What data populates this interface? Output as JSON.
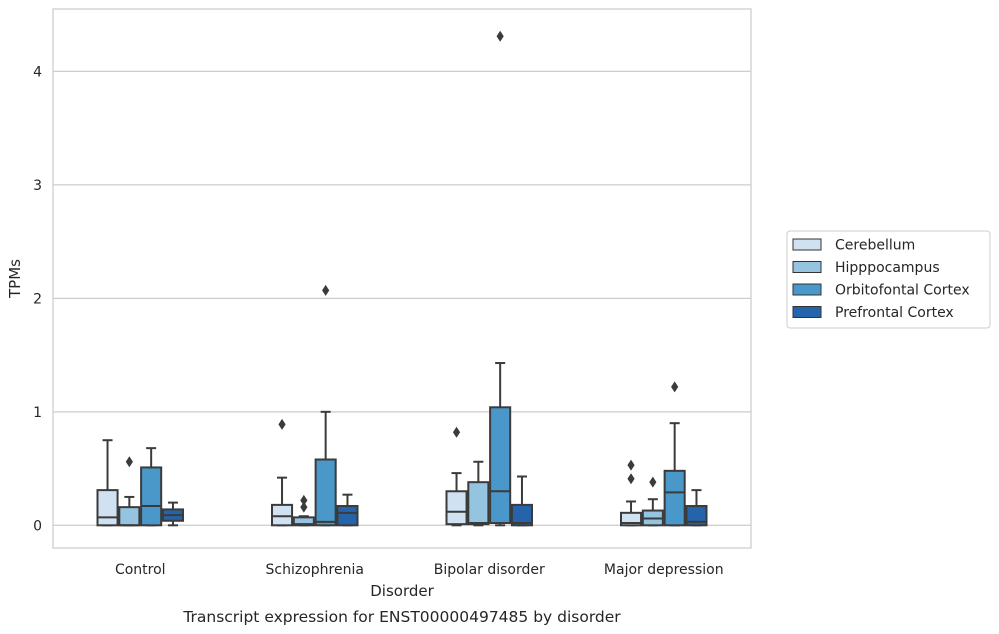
{
  "chart_data": {
    "type": "box",
    "title": "",
    "caption": "Transcript expression for ENST00000497485 by disorder",
    "xlabel": "Disorder",
    "ylabel": "TPMs",
    "ylim": [
      -0.2,
      4.55
    ],
    "yticks": [
      0,
      1,
      2,
      3,
      4
    ],
    "grid": "horizontal",
    "legend_position": "right",
    "categories": [
      "Control",
      "Schizophrenia",
      "Bipolar disorder",
      "Major depression"
    ],
    "series": [
      {
        "name": "Cerebellum",
        "color": "#d0e1f2",
        "boxes": [
          {
            "whislo": 0.0,
            "q1": 0.0,
            "med": 0.07,
            "q3": 0.31,
            "whishi": 0.75,
            "fliers": []
          },
          {
            "whislo": 0.0,
            "q1": 0.0,
            "med": 0.08,
            "q3": 0.18,
            "whishi": 0.42,
            "fliers": [
              0.89
            ]
          },
          {
            "whislo": 0.0,
            "q1": 0.01,
            "med": 0.12,
            "q3": 0.3,
            "whishi": 0.46,
            "fliers": [
              0.82
            ]
          },
          {
            "whislo": 0.0,
            "q1": 0.0,
            "med": 0.02,
            "q3": 0.11,
            "whishi": 0.21,
            "fliers": [
              0.41,
              0.53
            ]
          }
        ]
      },
      {
        "name": "Hipppocampus",
        "color": "#94c4df",
        "boxes": [
          {
            "whislo": 0.0,
            "q1": 0.0,
            "med": 0.0,
            "q3": 0.16,
            "whishi": 0.25,
            "fliers": [
              0.56
            ]
          },
          {
            "whislo": 0.0,
            "q1": 0.0,
            "med": 0.01,
            "q3": 0.07,
            "whishi": 0.08,
            "fliers": [
              0.16,
              0.22
            ]
          },
          {
            "whislo": 0.0,
            "q1": 0.01,
            "med": 0.02,
            "q3": 0.38,
            "whishi": 0.56,
            "fliers": []
          },
          {
            "whislo": 0.0,
            "q1": 0.0,
            "med": 0.06,
            "q3": 0.13,
            "whishi": 0.23,
            "fliers": [
              0.38
            ]
          }
        ]
      },
      {
        "name": "Orbitofontal Cortex",
        "color": "#4a98c9",
        "boxes": [
          {
            "whislo": 0.0,
            "q1": 0.0,
            "med": 0.17,
            "q3": 0.51,
            "whishi": 0.68,
            "fliers": []
          },
          {
            "whislo": 0.0,
            "q1": 0.0,
            "med": 0.03,
            "q3": 0.58,
            "whishi": 1.0,
            "fliers": [
              2.07
            ]
          },
          {
            "whislo": 0.0,
            "q1": 0.02,
            "med": 0.3,
            "q3": 1.04,
            "whishi": 1.43,
            "fliers": [
              4.31
            ]
          },
          {
            "whislo": 0.0,
            "q1": 0.0,
            "med": 0.29,
            "q3": 0.48,
            "whishi": 0.9,
            "fliers": [
              1.22
            ]
          }
        ]
      },
      {
        "name": "Prefrontal Cortex",
        "color": "#2563aa",
        "boxes": [
          {
            "whislo": 0.0,
            "q1": 0.04,
            "med": 0.09,
            "q3": 0.14,
            "whishi": 0.2,
            "fliers": []
          },
          {
            "whislo": 0.0,
            "q1": 0.0,
            "med": 0.11,
            "q3": 0.17,
            "whishi": 0.27,
            "fliers": []
          },
          {
            "whislo": 0.0,
            "q1": 0.0,
            "med": 0.02,
            "q3": 0.18,
            "whishi": 0.43,
            "fliers": []
          },
          {
            "whislo": 0.0,
            "q1": 0.0,
            "med": 0.03,
            "q3": 0.17,
            "whishi": 0.31,
            "fliers": []
          }
        ]
      }
    ]
  }
}
